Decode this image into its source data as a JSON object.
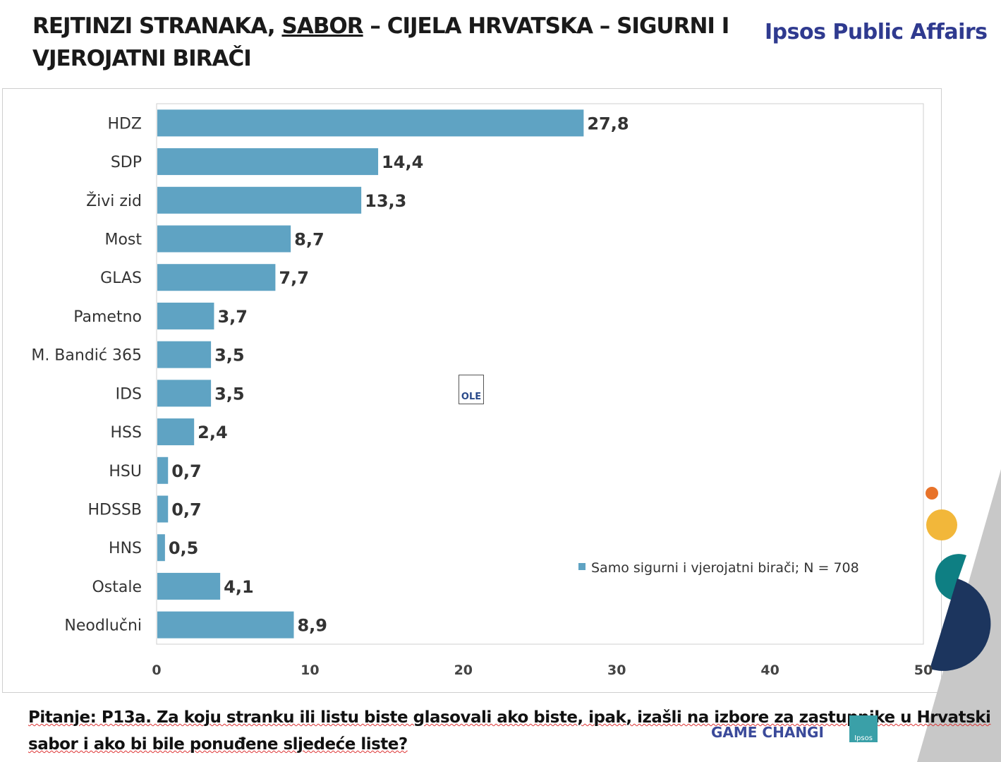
{
  "header": {
    "title_part1": "REJTINZI STRANAKA, ",
    "title_underlined": "SABOR",
    "title_part2": " – CIJELA HRVATSKA – SIGURNI I VJEROJATNI BIRAČI",
    "brand": "Ipsos Public Affairs"
  },
  "footer": {
    "question": "Pitanje: P13a. Za koju stranku ili listu biste glasovali ako biste, ipak, izašli na izbore za zastupnike u Hrvatski sabor i ako bi bile ponuđene sljedeće liste?",
    "tagline": "GAME CHANGI",
    "logo": "Ipsos"
  },
  "ole_icon": "OLE",
  "colors": {
    "bar": "#5fa3c3",
    "orange": "#e8732a",
    "yellow": "#f2b73a",
    "teal": "#0e7f83",
    "navy": "#1c355e"
  },
  "chart_data": {
    "type": "bar",
    "orientation": "horizontal",
    "categories": [
      "HDZ",
      "SDP",
      "Živi zid",
      "Most",
      "GLAS",
      "Pametno",
      "M. Bandić 365",
      "IDS",
      "HSS",
      "HSU",
      "HDSSB",
      "HNS",
      "Ostale",
      "Neodlučni"
    ],
    "values": [
      27.8,
      14.4,
      13.3,
      8.7,
      7.7,
      3.7,
      3.5,
      3.5,
      2.4,
      0.7,
      0.7,
      0.5,
      4.1,
      8.9
    ],
    "labels": [
      "27,8",
      "14,4",
      "13,3",
      "8,7",
      "7,7",
      "3,7",
      "3,5",
      "3,5",
      "2,4",
      "0,7",
      "0,7",
      "0,5",
      "4,1",
      "8,9"
    ],
    "xlim": [
      0,
      50
    ],
    "xticks": [
      "0",
      "10",
      "20",
      "30",
      "40",
      "50"
    ],
    "legend": "Samo sigurni i vjerojatni birači; N = 708",
    "legend_position": "bottom-right"
  }
}
